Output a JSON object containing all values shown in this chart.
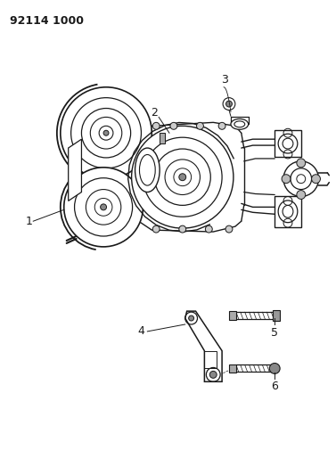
{
  "title": "92114 1000",
  "bg_color": "#ffffff",
  "line_color": "#1a1a1a",
  "title_fontsize": 9,
  "label_fontsize": 9,
  "figsize": [
    3.77,
    5.33
  ],
  "dpi": 100
}
